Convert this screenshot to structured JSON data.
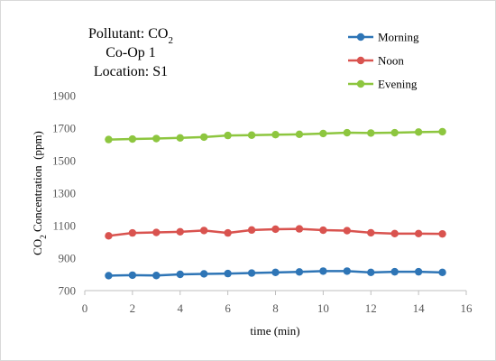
{
  "chart_data": {
    "type": "line",
    "title_lines": [
      "Pollutant: CO",
      "Co-Op 1",
      "Location: S1"
    ],
    "title_subscript": "2",
    "xlabel": "time (min)",
    "ylabel_prefix": "CO",
    "ylabel_subscript": "2",
    "ylabel_suffix": " Concentration  (ppm)",
    "xlim": [
      0,
      16
    ],
    "ylim": [
      700,
      1900
    ],
    "x_ticks": [
      0,
      2,
      4,
      6,
      8,
      10,
      12,
      14,
      16
    ],
    "y_ticks": [
      700,
      900,
      1100,
      1300,
      1500,
      1700,
      1900
    ],
    "grid": false,
    "legend_position": "top-right",
    "x": [
      1,
      2,
      3,
      4,
      5,
      6,
      7,
      8,
      9,
      10,
      11,
      12,
      13,
      14,
      15
    ],
    "series": [
      {
        "name": "Morning",
        "color": "#2E75B6",
        "values": [
          792,
          795,
          793,
          800,
          803,
          805,
          808,
          812,
          815,
          820,
          820,
          812,
          816,
          816,
          812
        ]
      },
      {
        "name": "Noon",
        "color": "#D9534F",
        "values": [
          1037,
          1055,
          1058,
          1062,
          1070,
          1055,
          1073,
          1078,
          1080,
          1072,
          1069,
          1056,
          1051,
          1051,
          1049
        ]
      },
      {
        "name": "Evening",
        "color": "#8DC63F",
        "values": [
          1630,
          1633,
          1636,
          1640,
          1645,
          1655,
          1657,
          1660,
          1662,
          1667,
          1672,
          1670,
          1672,
          1676,
          1678
        ]
      }
    ]
  }
}
